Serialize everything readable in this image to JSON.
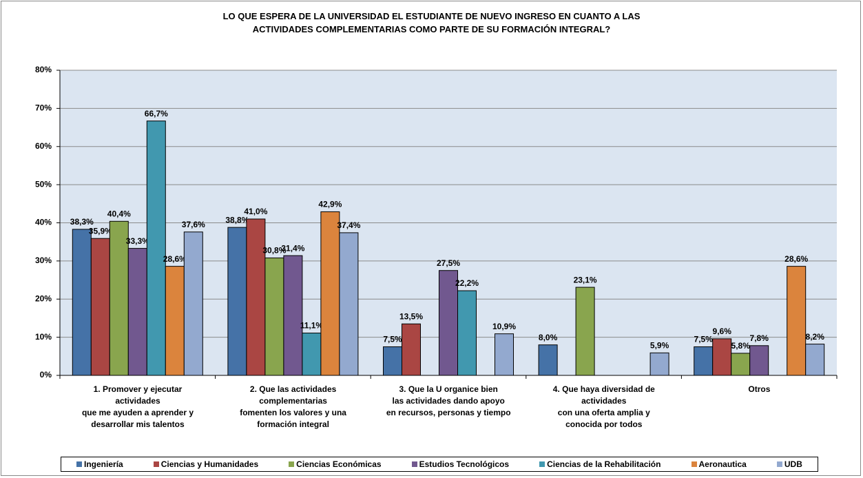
{
  "chart_data": {
    "type": "bar",
    "title": "LO QUE ESPERA DE LA UNIVERSIDAD EL ESTUDIANTE DE NUEVO INGRESO EN CUANTO A LAS\nACTIVIDADES COMPLEMENTARIAS COMO PARTE DE SU FORMACIÓN INTEGRAL?",
    "categories": [
      "1. Promover y ejecutar\nactividades\nque me ayuden a aprender y\ndesarrollar mis talentos",
      "2. Que las actividades\ncomplementarias\nfomenten los valores y una\nformación integral",
      "3. Que la U organice bien\nlas actividades dando apoyo\nen recursos, personas y tiempo",
      "4. Que haya diversidad de\nactividades\ncon una oferta amplia y\nconocida por todos",
      "Otros"
    ],
    "series": [
      {
        "name": "Ingeniería",
        "color": "#4572a7",
        "values": [
          38.3,
          38.8,
          7.5,
          8.0,
          7.5
        ],
        "value_labels": [
          "38,3%",
          "38,8%",
          "7,5%",
          "8,0%",
          "7,5%"
        ]
      },
      {
        "name": "Ciencias y Humanidades",
        "color": "#aa4643",
        "values": [
          35.9,
          41.0,
          13.5,
          null,
          9.6
        ],
        "value_labels": [
          "35,9%",
          "41,0%",
          "13,5%",
          null,
          "9,6%"
        ]
      },
      {
        "name": "Ciencias Económicas",
        "color": "#89a54e",
        "values": [
          40.4,
          30.8,
          null,
          23.1,
          5.8
        ],
        "value_labels": [
          "40,4%",
          "30,8%",
          null,
          "23,1%",
          "5,8%"
        ]
      },
      {
        "name": "Estudios Tecnológicos",
        "color": "#71588f",
        "values": [
          33.3,
          31.4,
          27.5,
          null,
          7.8
        ],
        "value_labels": [
          "33,3%",
          "31,4%",
          "27,5%",
          null,
          "7,8%"
        ]
      },
      {
        "name": "Ciencias de la Rehabilitación",
        "color": "#4198af",
        "values": [
          66.7,
          11.1,
          22.2,
          null,
          null
        ],
        "value_labels": [
          "66,7%",
          "11,1%",
          "22,2%",
          null,
          null
        ]
      },
      {
        "name": "Aeronautica",
        "color": "#db843d",
        "values": [
          28.6,
          42.9,
          null,
          null,
          28.6
        ],
        "value_labels": [
          "28,6%",
          "42,9%",
          null,
          null,
          "28,6%"
        ]
      },
      {
        "name": "UDB",
        "color": "#93a9cf",
        "values": [
          37.6,
          37.4,
          10.9,
          5.9,
          8.2
        ],
        "value_labels": [
          "37,6%",
          "37,4%",
          "10,9%",
          "5,9%",
          "8,2%"
        ]
      }
    ],
    "ylim": [
      0,
      80
    ],
    "yticks": [
      {
        "value": 0,
        "label": "0%"
      },
      {
        "value": 10,
        "label": "10%"
      },
      {
        "value": 20,
        "label": "20%"
      },
      {
        "value": 30,
        "label": "30%"
      },
      {
        "value": 40,
        "label": "40%"
      },
      {
        "value": 50,
        "label": "50%"
      },
      {
        "value": 60,
        "label": "60%"
      },
      {
        "value": 70,
        "label": "70%"
      },
      {
        "value": 80,
        "label": "80%"
      }
    ],
    "grid": true,
    "legend": "bottom"
  }
}
